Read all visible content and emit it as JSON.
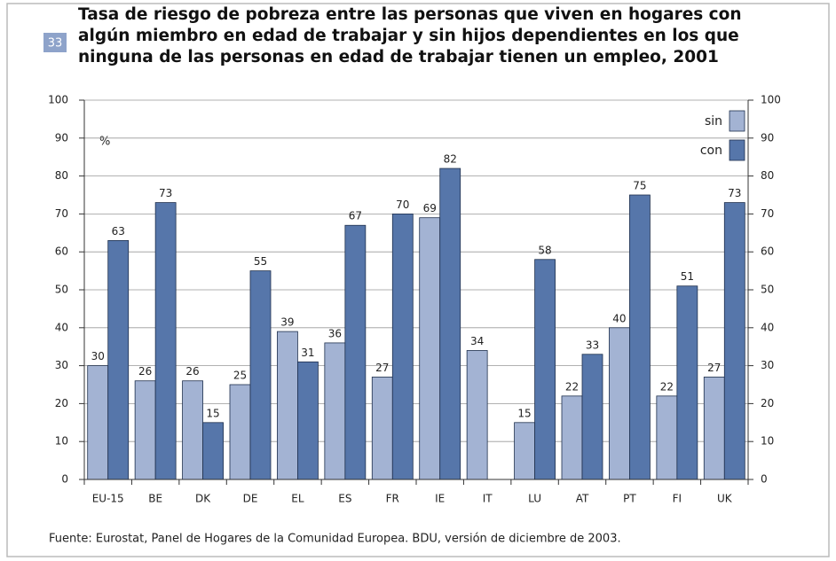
{
  "chart_data": {
    "type": "bar",
    "figure_number": "33",
    "title": [
      "Tasa de riesgo de pobreza entre las personas que viven en hogares con",
      "algún miembro en edad de trabajar y sin hijos dependientes en los que",
      "ninguna de las personas en edad de trabajar tienen un empleo, 2001"
    ],
    "y_unit": "%",
    "categories": [
      "EU-15",
      "BE",
      "DK",
      "DE",
      "EL",
      "ES",
      "FR",
      "IE",
      "IT",
      "LU",
      "AT",
      "PT",
      "FI",
      "UK"
    ],
    "series": [
      {
        "name": "sin",
        "color": "#a3b3d3",
        "values": [
          30,
          26,
          26,
          25,
          39,
          36,
          27,
          69,
          34,
          15,
          22,
          40,
          22,
          27
        ]
      },
      {
        "name": "con",
        "color": "#5676aa",
        "values": [
          63,
          73,
          15,
          55,
          31,
          67,
          70,
          82,
          null,
          58,
          33,
          75,
          51,
          73
        ]
      }
    ],
    "ylim": [
      0,
      100
    ],
    "yticks": [
      0,
      10,
      20,
      30,
      40,
      50,
      60,
      70,
      80,
      90,
      100
    ],
    "y2lim": [
      0,
      100
    ],
    "y2ticks": [
      0,
      10,
      20,
      30,
      40,
      50,
      60,
      70,
      80,
      90,
      100
    ],
    "grid": true,
    "legend": "top-right",
    "source": "Fuente: Eurostat, Panel de Hogares de la Comunidad Europea. BDU, versión de diciembre de 2003."
  }
}
